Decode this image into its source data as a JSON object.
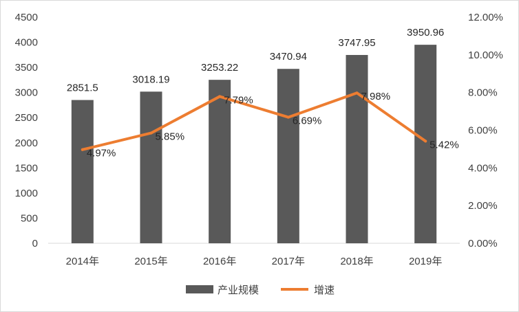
{
  "chart_data": {
    "type": "bar",
    "categories": [
      "2014年",
      "2015年",
      "2016年",
      "2017年",
      "2018年",
      "2019年"
    ],
    "series": [
      {
        "name": "产业规模",
        "type": "bar",
        "axis": "left",
        "values": [
          2851.5,
          3018.19,
          3253.22,
          3470.94,
          3747.95,
          3950.96
        ],
        "labels": [
          "2851.5",
          "3018.19",
          "3253.22",
          "3470.94",
          "3747.95",
          "3950.96"
        ],
        "color": "#595959"
      },
      {
        "name": "增速",
        "type": "line",
        "axis": "right",
        "values": [
          4.97,
          5.85,
          7.79,
          6.69,
          7.98,
          5.42
        ],
        "labels": [
          "4.97%",
          "5.85%",
          "7.79%",
          "6.69%",
          "7.98%",
          "5.42%"
        ],
        "color": "#ED7D31"
      }
    ],
    "y_left": {
      "min": 0,
      "max": 4500,
      "step": 500,
      "ticks": [
        "0",
        "500",
        "1000",
        "1500",
        "2000",
        "2500",
        "3000",
        "3500",
        "4000",
        "4500"
      ]
    },
    "y_right": {
      "min": 0,
      "max": 12,
      "step": 2,
      "ticks": [
        "0.00%",
        "2.00%",
        "4.00%",
        "6.00%",
        "8.00%",
        "10.00%",
        "12.00%"
      ]
    },
    "grid": false,
    "legend_position": "bottom"
  }
}
